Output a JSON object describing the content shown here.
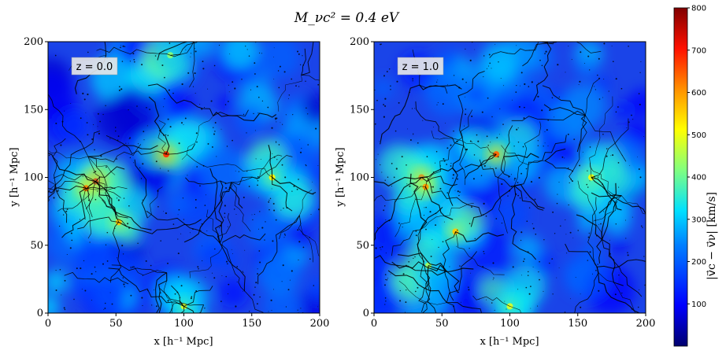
{
  "figure": {
    "title": "M_νc² = 0.4 eV"
  },
  "colors": {
    "colormap": [
      "#000080",
      "#0000ff",
      "#0080ff",
      "#00ffff",
      "#80ff80",
      "#ffff00",
      "#ff8000",
      "#ff0000",
      "#800000"
    ],
    "filament": "#000000",
    "redshift_box": "#f0f0f0"
  },
  "chart_data": [
    {
      "type": "heatmap",
      "panel": "left",
      "redshift_label": "z = 0.0",
      "xlabel": "x [h⁻¹ Mpc]",
      "ylabel": "y [h⁻¹ Mpc]",
      "xlim": [
        0,
        200
      ],
      "ylim": [
        0,
        200
      ],
      "xticks": [
        0,
        50,
        100,
        150,
        200
      ],
      "yticks": [
        0,
        50,
        100,
        150,
        200
      ],
      "hotspots": [
        {
          "x": 35,
          "y": 97,
          "v": 720
        },
        {
          "x": 87,
          "y": 117,
          "v": 680
        },
        {
          "x": 52,
          "y": 67,
          "v": 560
        },
        {
          "x": 28,
          "y": 92,
          "v": 620
        },
        {
          "x": 165,
          "y": 100,
          "v": 520
        },
        {
          "x": 100,
          "y": 5,
          "v": 480
        },
        {
          "x": 90,
          "y": 190,
          "v": 420
        }
      ]
    },
    {
      "type": "heatmap",
      "panel": "right",
      "redshift_label": "z = 1.0",
      "xlabel": "x [h⁻¹ Mpc]",
      "ylabel": "y [h⁻¹ Mpc]",
      "xlim": [
        0,
        200
      ],
      "ylim": [
        0,
        200
      ],
      "xticks": [
        0,
        50,
        100,
        150,
        200
      ],
      "yticks": [
        0,
        50,
        100,
        150,
        200
      ],
      "hotspots": [
        {
          "x": 35,
          "y": 100,
          "v": 640
        },
        {
          "x": 90,
          "y": 117,
          "v": 640
        },
        {
          "x": 60,
          "y": 60,
          "v": 560
        },
        {
          "x": 38,
          "y": 93,
          "v": 600
        },
        {
          "x": 160,
          "y": 100,
          "v": 500
        },
        {
          "x": 100,
          "y": 5,
          "v": 480
        },
        {
          "x": 40,
          "y": 35,
          "v": 440
        }
      ]
    }
  ],
  "colorbar": {
    "label": "|v⃗c − v⃗ν| [km/s]",
    "ticks": [
      100,
      200,
      300,
      400,
      500,
      600,
      700,
      800
    ],
    "range": [
      0,
      800
    ]
  }
}
